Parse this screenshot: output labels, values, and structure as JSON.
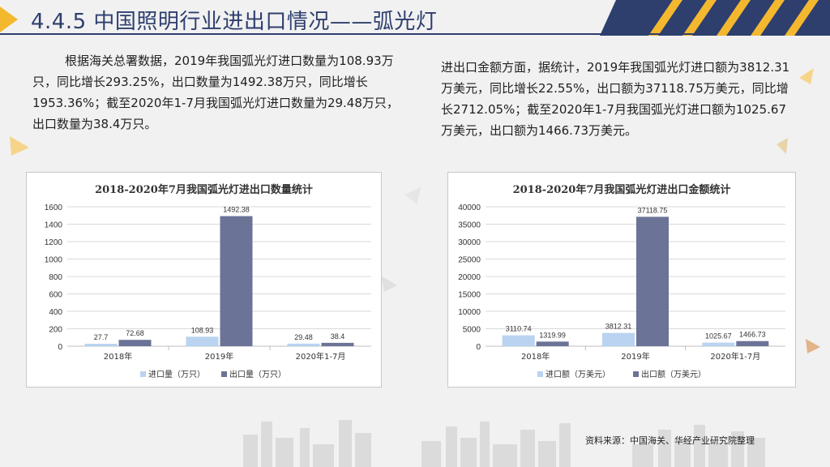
{
  "title": "4.4.5 中国照明行业进出口情况——弧光灯",
  "paragraph_left": "根据海关总署数据，2019年我国弧光灯进口数量为108.93万只，同比增长293.25%，出口数量为1492.38万只，同比增长1953.36%；截至2020年1-7月我国弧光灯进口数量为29.48万只，出口数量为38.4万只。",
  "paragraph_right": "进出口金额方面，据统计，2019年我国弧光灯进口额为3812.31万美元，同比增长22.55%，出口额为37118.75万美元，同比增长2712.05%；截至2020年1-7月我国弧光灯进口额为1025.67万美元，出口额为1466.73万美元。",
  "source": "资料来源：中国海关、华经产业研究院整理",
  "colors": {
    "import": "#b9d3f0",
    "export": "#6b7396",
    "title": "#2e3f6e",
    "accent": "#f4b82e"
  },
  "chart_data": [
    {
      "type": "bar",
      "title": "2018-2020年7月我国弧光灯进出口数量统计",
      "categories": [
        "2018年",
        "2019年",
        "2020年1-7月"
      ],
      "series": [
        {
          "name": "进口量（万只）",
          "values": [
            27.7,
            108.93,
            29.48
          ],
          "labels": [
            "27.7",
            "108.93",
            "29.48"
          ]
        },
        {
          "name": "出口量（万只）",
          "values": [
            72.68,
            1492.38,
            38.4
          ],
          "labels": [
            "72.68",
            "1492.38",
            "38.4"
          ]
        }
      ],
      "ylim": [
        0,
        1600
      ],
      "yticks": [
        0,
        200,
        400,
        600,
        800,
        1000,
        1200,
        1400,
        1600
      ],
      "grid": true,
      "legend": "bottom"
    },
    {
      "type": "bar",
      "title": "2018-2020年7月我国弧光灯进出口金额统计",
      "categories": [
        "2018年",
        "2019年",
        "2020年1-7月"
      ],
      "series": [
        {
          "name": "进口额（万美元）",
          "values": [
            3110.74,
            3812.31,
            1025.67
          ],
          "labels": [
            "3110.74",
            "3812.31",
            "1025.67"
          ]
        },
        {
          "name": "出口额（万美元）",
          "values": [
            1319.99,
            37118.75,
            1466.73
          ],
          "labels": [
            "1319.99",
            "37118.75",
            "1466.73"
          ]
        }
      ],
      "ylim": [
        0,
        40000
      ],
      "yticks": [
        0,
        5000,
        10000,
        15000,
        20000,
        25000,
        30000,
        35000,
        40000
      ],
      "grid": true,
      "legend": "bottom"
    }
  ]
}
